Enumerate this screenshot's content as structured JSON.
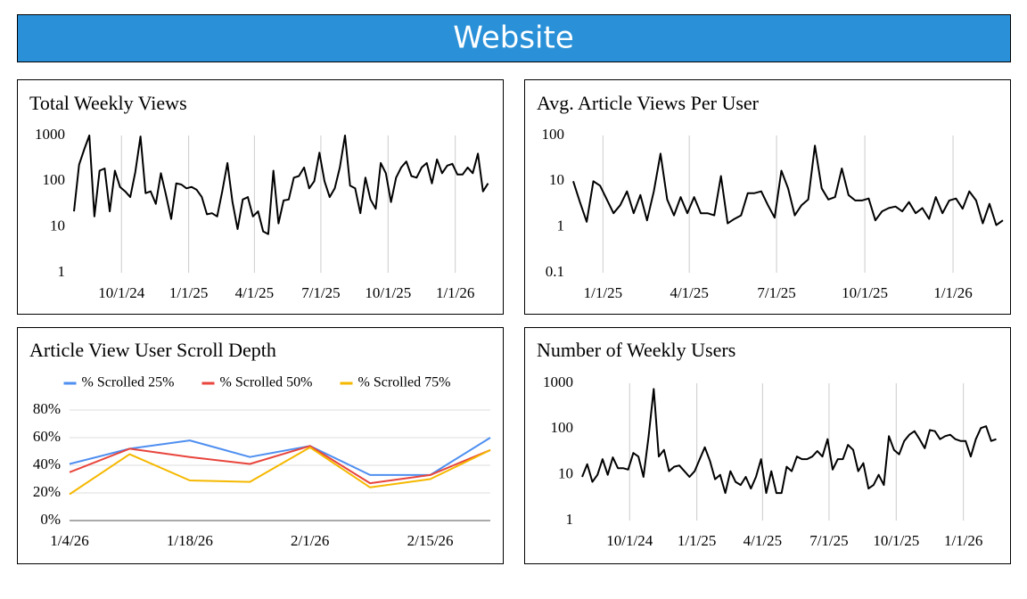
{
  "header": {
    "title": "Website"
  },
  "chart_data": [
    {
      "type": "line",
      "title": "Total Weekly Views",
      "log_scale": true,
      "grid": "x",
      "color": "#000000",
      "x": [
        "2024-07-28",
        "2024-08-04",
        "2024-08-11",
        "2024-08-18",
        "2024-08-25",
        "2024-09-01",
        "2024-09-08",
        "2024-09-15",
        "2024-09-22",
        "2024-09-29",
        "2024-10-06",
        "2024-10-13",
        "2024-10-20",
        "2024-10-27",
        "2024-11-03",
        "2024-11-10",
        "2024-11-17",
        "2024-11-24",
        "2024-12-01",
        "2024-12-08",
        "2024-12-15",
        "2024-12-22",
        "2024-12-29",
        "2025-01-05",
        "2025-01-12",
        "2025-01-19",
        "2025-01-26",
        "2025-02-02",
        "2025-02-09",
        "2025-02-16",
        "2025-02-23",
        "2025-03-02",
        "2025-03-09",
        "2025-03-16",
        "2025-03-23",
        "2025-03-30",
        "2025-04-06",
        "2025-04-13",
        "2025-04-20",
        "2025-04-27",
        "2025-05-04",
        "2025-05-11",
        "2025-05-18",
        "2025-05-25",
        "2025-06-01",
        "2025-06-08",
        "2025-06-15",
        "2025-06-22",
        "2025-06-29",
        "2025-07-06",
        "2025-07-13",
        "2025-07-20",
        "2025-07-27",
        "2025-08-03",
        "2025-08-10",
        "2025-08-17",
        "2025-08-24",
        "2025-08-31",
        "2025-09-07",
        "2025-09-14",
        "2025-09-21",
        "2025-09-28",
        "2025-10-05",
        "2025-10-12",
        "2025-10-19",
        "2025-10-26",
        "2025-11-02",
        "2025-11-09",
        "2025-11-16",
        "2025-11-23",
        "2025-11-30",
        "2025-12-07",
        "2025-12-14",
        "2025-12-21",
        "2025-12-28",
        "2026-01-04",
        "2026-01-11",
        "2026-01-18",
        "2026-01-25",
        "2026-02-01",
        "2026-02-08",
        "2026-02-15"
      ],
      "values": [
        22,
        230,
        500,
        1000,
        17,
        170,
        190,
        22,
        170,
        75,
        60,
        45,
        160,
        950,
        55,
        60,
        32,
        150,
        50,
        15,
        90,
        85,
        70,
        75,
        65,
        45,
        19,
        20,
        17,
        60,
        250,
        35,
        9,
        40,
        45,
        17,
        22,
        8,
        7,
        170,
        12,
        38,
        40,
        120,
        130,
        200,
        70,
        100,
        420,
        100,
        45,
        70,
        200,
        1000,
        80,
        70,
        20,
        120,
        40,
        25,
        250,
        150,
        35,
        120,
        200,
        270,
        130,
        120,
        200,
        250,
        90,
        300,
        150,
        220,
        240,
        140,
        140,
        200,
        150,
        400,
        60,
        90
      ],
      "xlim": [
        "2024-07-28",
        "2026-02-18"
      ],
      "xticks": [
        {
          "value": "2024-10-01",
          "label": "10/1/24"
        },
        {
          "value": "2025-01-01",
          "label": "1/1/25"
        },
        {
          "value": "2025-04-01",
          "label": "4/1/25"
        },
        {
          "value": "2025-07-01",
          "label": "7/1/25"
        },
        {
          "value": "2025-10-01",
          "label": "10/1/25"
        },
        {
          "value": "2026-01-01",
          "label": "1/1/26"
        }
      ],
      "ylim": [
        1,
        1000
      ],
      "yticks": [
        1,
        10,
        100,
        1000
      ]
    },
    {
      "type": "line",
      "title": "Avg. Article Views Per User",
      "log_scale": true,
      "grid": "x",
      "color": "#000000",
      "x": [
        "2024-12-01",
        "2024-12-08",
        "2024-12-15",
        "2024-12-22",
        "2024-12-29",
        "2025-01-05",
        "2025-01-12",
        "2025-01-19",
        "2025-01-26",
        "2025-02-02",
        "2025-02-09",
        "2025-02-16",
        "2025-02-23",
        "2025-03-02",
        "2025-03-09",
        "2025-03-16",
        "2025-03-23",
        "2025-03-30",
        "2025-04-06",
        "2025-04-13",
        "2025-04-20",
        "2025-04-27",
        "2025-05-04",
        "2025-05-11",
        "2025-05-18",
        "2025-05-25",
        "2025-06-01",
        "2025-06-08",
        "2025-06-15",
        "2025-06-22",
        "2025-06-29",
        "2025-07-06",
        "2025-07-13",
        "2025-07-20",
        "2025-07-27",
        "2025-08-03",
        "2025-08-10",
        "2025-08-17",
        "2025-08-24",
        "2025-08-31",
        "2025-09-07",
        "2025-09-14",
        "2025-09-21",
        "2025-09-28",
        "2025-10-05",
        "2025-10-12",
        "2025-10-19",
        "2025-10-26",
        "2025-11-02",
        "2025-11-09",
        "2025-11-16",
        "2025-11-23",
        "2025-11-30",
        "2025-12-07",
        "2025-12-14",
        "2025-12-21",
        "2025-12-28",
        "2026-01-04",
        "2026-01-11",
        "2026-01-18",
        "2026-01-25",
        "2026-02-01",
        "2026-02-08",
        "2026-02-15",
        "2026-02-22"
      ],
      "values": [
        10,
        3.5,
        1.3,
        10,
        8,
        4,
        2,
        3,
        6,
        2,
        5,
        1.4,
        6,
        40,
        4,
        1.8,
        4.5,
        2,
        4.5,
        2,
        2,
        1.8,
        13,
        1.2,
        1.5,
        1.8,
        5.5,
        5.5,
        6,
        3,
        1.6,
        17,
        7,
        1.8,
        3,
        4,
        60,
        7,
        4,
        4.5,
        19,
        5,
        3.8,
        3.8,
        4.2,
        1.4,
        2.2,
        2.6,
        2.8,
        2.2,
        3.5,
        2,
        2.6,
        1.5,
        4.5,
        2,
        3.8,
        4.2,
        2.5,
        6,
        3.8,
        1.2,
        3.2,
        1.1,
        1.4
      ],
      "xlim": [
        "2024-12-01",
        "2026-02-22"
      ],
      "xticks": [
        {
          "value": "2025-01-01",
          "label": "1/1/25"
        },
        {
          "value": "2025-04-01",
          "label": "4/1/25"
        },
        {
          "value": "2025-07-01",
          "label": "7/1/25"
        },
        {
          "value": "2025-10-01",
          "label": "10/1/25"
        },
        {
          "value": "2026-01-01",
          "label": "1/1/26"
        }
      ],
      "ylim": [
        0.1,
        100
      ],
      "yticks": [
        0.1,
        1,
        10,
        100
      ]
    },
    {
      "type": "line",
      "title": "Article View User Scroll Depth",
      "log_scale": false,
      "grid": "y",
      "legend": "top",
      "x": [
        "2026-01-04",
        "2026-01-11",
        "2026-01-18",
        "2026-01-25",
        "2026-02-01",
        "2026-02-08",
        "2026-02-15",
        "2026-02-22"
      ],
      "series": [
        {
          "name": "% Scrolled 25%",
          "color": "#4f8ff0",
          "values": [
            41,
            52,
            58,
            46,
            54,
            33,
            33,
            60
          ]
        },
        {
          "name": "% Scrolled 50%",
          "color": "#e8453c",
          "values": [
            35,
            52,
            46,
            41,
            54,
            27,
            33,
            51
          ]
        },
        {
          "name": "% Scrolled 75%",
          "color": "#f5b800",
          "values": [
            19,
            48,
            29,
            28,
            53,
            24,
            30,
            51
          ]
        }
      ],
      "xlim": [
        "2026-01-04",
        "2026-02-22"
      ],
      "xticks": [
        {
          "value": "2026-01-04",
          "label": "1/4/26"
        },
        {
          "value": "2026-01-18",
          "label": "1/18/26"
        },
        {
          "value": "2026-02-01",
          "label": "2/1/26"
        },
        {
          "value": "2026-02-15",
          "label": "2/15/26"
        }
      ],
      "ylim": [
        0,
        80
      ],
      "yticks": [
        {
          "value": 0,
          "label": "0%"
        },
        {
          "value": 20,
          "label": "20%"
        },
        {
          "value": 40,
          "label": "40%"
        },
        {
          "value": 60,
          "label": "60%"
        },
        {
          "value": 80,
          "label": "80%"
        }
      ]
    },
    {
      "type": "line",
      "title": "Number of Weekly Users",
      "log_scale": true,
      "grid": "x",
      "color": "#000000",
      "x": [
        "2024-07-28",
        "2024-08-04",
        "2024-08-11",
        "2024-08-18",
        "2024-08-25",
        "2024-09-01",
        "2024-09-08",
        "2024-09-15",
        "2024-09-22",
        "2024-09-29",
        "2024-10-06",
        "2024-10-13",
        "2024-10-20",
        "2024-10-27",
        "2024-11-03",
        "2024-11-10",
        "2024-11-17",
        "2024-11-24",
        "2024-12-01",
        "2024-12-08",
        "2024-12-15",
        "2024-12-22",
        "2024-12-29",
        "2025-01-05",
        "2025-01-12",
        "2025-01-19",
        "2025-01-26",
        "2025-02-02",
        "2025-02-09",
        "2025-02-16",
        "2025-02-23",
        "2025-03-02",
        "2025-03-09",
        "2025-03-16",
        "2025-03-23",
        "2025-03-30",
        "2025-04-06",
        "2025-04-13",
        "2025-04-20",
        "2025-04-27",
        "2025-05-04",
        "2025-05-11",
        "2025-05-18",
        "2025-05-25",
        "2025-06-01",
        "2025-06-08",
        "2025-06-15",
        "2025-06-22",
        "2025-06-29",
        "2025-07-06",
        "2025-07-13",
        "2025-07-20",
        "2025-07-27",
        "2025-08-03",
        "2025-08-10",
        "2025-08-17",
        "2025-08-24",
        "2025-08-31",
        "2025-09-07",
        "2025-09-14",
        "2025-09-21",
        "2025-09-28",
        "2025-10-05",
        "2025-10-12",
        "2025-10-19",
        "2025-10-26",
        "2025-11-02",
        "2025-11-09",
        "2025-11-16",
        "2025-11-23",
        "2025-11-30",
        "2025-12-07",
        "2025-12-14",
        "2025-12-21",
        "2025-12-28",
        "2026-01-04",
        "2026-01-11",
        "2026-01-18",
        "2026-01-25",
        "2026-02-01",
        "2026-02-08",
        "2026-02-15"
      ],
      "values": [
        9,
        17,
        7,
        10,
        22,
        10,
        24,
        14,
        14,
        13,
        30,
        25,
        9,
        70,
        750,
        25,
        35,
        12,
        15,
        16,
        12,
        9,
        12,
        22,
        40,
        20,
        8,
        10,
        4,
        12,
        7,
        6,
        9,
        5,
        9,
        22,
        4,
        12,
        4,
        4,
        15,
        12,
        25,
        22,
        22,
        25,
        33,
        25,
        60,
        13,
        22,
        22,
        45,
        35,
        12,
        18,
        5,
        6,
        10,
        6,
        70,
        35,
        28,
        55,
        75,
        90,
        60,
        38,
        95,
        90,
        60,
        70,
        75,
        60,
        55,
        55,
        25,
        60,
        105,
        115,
        55,
        60
      ],
      "xlim": [
        "2024-07-28",
        "2026-02-18"
      ],
      "xticks": [
        {
          "value": "2024-10-01",
          "label": "10/1/24"
        },
        {
          "value": "2025-01-01",
          "label": "1/1/25"
        },
        {
          "value": "2025-04-01",
          "label": "4/1/25"
        },
        {
          "value": "2025-07-01",
          "label": "7/1/25"
        },
        {
          "value": "2025-10-01",
          "label": "10/1/25"
        },
        {
          "value": "2026-01-01",
          "label": "1/1/26"
        }
      ],
      "ylim": [
        1,
        1000
      ],
      "yticks": [
        1,
        10,
        100,
        1000
      ]
    }
  ]
}
